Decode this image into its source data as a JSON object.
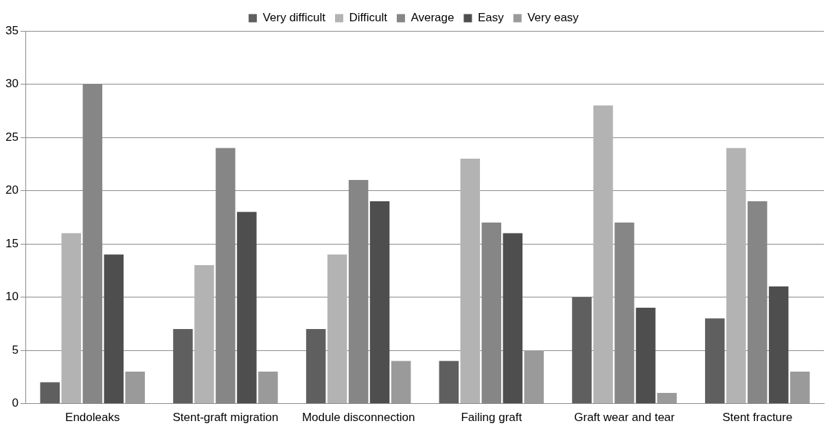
{
  "chart_data": {
    "type": "bar",
    "categories": [
      "Endoleaks",
      "Stent-graft migration",
      "Module disconnection",
      "Failing graft",
      "Graft wear and tear",
      "Stent fracture"
    ],
    "series": [
      {
        "name": "Very difficult",
        "color": "#5f5f5f",
        "values": [
          2,
          7,
          7,
          4,
          10,
          8
        ]
      },
      {
        "name": "Difficult",
        "color": "#b3b3b3",
        "values": [
          16,
          13,
          14,
          23,
          28,
          24
        ]
      },
      {
        "name": "Average",
        "color": "#868686",
        "values": [
          30,
          24,
          21,
          17,
          17,
          19
        ]
      },
      {
        "name": "Easy",
        "color": "#4e4e4e",
        "values": [
          14,
          18,
          19,
          16,
          9,
          11
        ]
      },
      {
        "name": "Very easy",
        "color": "#9a9a9a",
        "values": [
          3,
          3,
          4,
          5,
          1,
          3
        ]
      }
    ],
    "ylim": [
      0,
      35
    ],
    "yticks": [
      0,
      5,
      10,
      15,
      20,
      25,
      30,
      35
    ],
    "grid": "y",
    "legend": "top"
  }
}
